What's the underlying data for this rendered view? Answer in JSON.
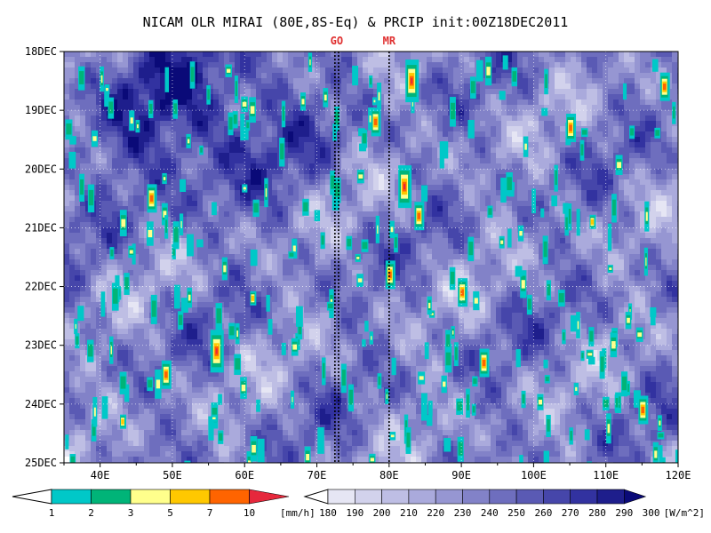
{
  "chart_data": {
    "type": "heatmap",
    "title": "NICAM OLR MIRAI (80E,8S-Eq) & PRCIP init:00Z18DEC2011",
    "x_axis": {
      "range": [
        35,
        120
      ],
      "tick_values": [
        40,
        50,
        60,
        70,
        80,
        90,
        100,
        110,
        120
      ],
      "tick_labels": [
        "40E",
        "50E",
        "60E",
        "70E",
        "80E",
        "90E",
        "100E",
        "110E",
        "120E"
      ]
    },
    "y_axis": {
      "range": [
        "18DEC",
        "25DEC"
      ],
      "tick_labels": [
        "18DEC",
        "19DEC",
        "20DEC",
        "21DEC",
        "22DEC",
        "23DEC",
        "24DEC",
        "25DEC"
      ]
    },
    "grid": true,
    "reference_lines": [
      {
        "label": "GO",
        "lon": [
          72.5,
          73.0
        ]
      },
      {
        "label": "MR",
        "lon": [
          80
        ]
      }
    ],
    "precip_colorbar": {
      "levels": [
        "1",
        "2",
        "3",
        "5",
        "7",
        "10"
      ],
      "unit": "[mm/h]",
      "colors": [
        "#00c8c8",
        "#00b478",
        "#ffff8c",
        "#ffc800",
        "#ff6400",
        "#e6283c"
      ]
    },
    "olr_colorbar": {
      "levels": [
        "180",
        "190",
        "200",
        "210",
        "220",
        "230",
        "240",
        "250",
        "260",
        "270",
        "280",
        "290",
        "300"
      ],
      "unit": "[W/m^2]",
      "colors": [
        "#ffffff",
        "#e6e6f4",
        "#d2d2ec",
        "#bebee4",
        "#aaaadc",
        "#9696d2",
        "#8282c8",
        "#6e6ebe",
        "#5a5ab4",
        "#4646aa",
        "#3232a0",
        "#1e1e8c",
        "#0a0a78"
      ]
    },
    "convective_patches": [
      {
        "lon": 83,
        "day": 0.5,
        "size": 3
      },
      {
        "lon": 82,
        "day": 2.3,
        "size": 3
      },
      {
        "lon": 78,
        "day": 1.2,
        "size": 2
      },
      {
        "lon": 80,
        "day": 3.8,
        "size": 2
      },
      {
        "lon": 47,
        "day": 2.5,
        "size": 2
      },
      {
        "lon": 56,
        "day": 5.1,
        "size": 3
      },
      {
        "lon": 49,
        "day": 5.5,
        "size": 2
      },
      {
        "lon": 84,
        "day": 2.8,
        "size": 2
      },
      {
        "lon": 93,
        "day": 5.3,
        "size": 2
      },
      {
        "lon": 115,
        "day": 6.1,
        "size": 2
      },
      {
        "lon": 105,
        "day": 1.3,
        "size": 2
      },
      {
        "lon": 118,
        "day": 0.6,
        "size": 2
      },
      {
        "lon": 43,
        "day": 6.3,
        "size": 1
      },
      {
        "lon": 61,
        "day": 4.2,
        "size": 1
      },
      {
        "lon": 90,
        "day": 4.1,
        "size": 2
      },
      {
        "lon": 108,
        "day": 2.9,
        "size": 1
      }
    ]
  }
}
